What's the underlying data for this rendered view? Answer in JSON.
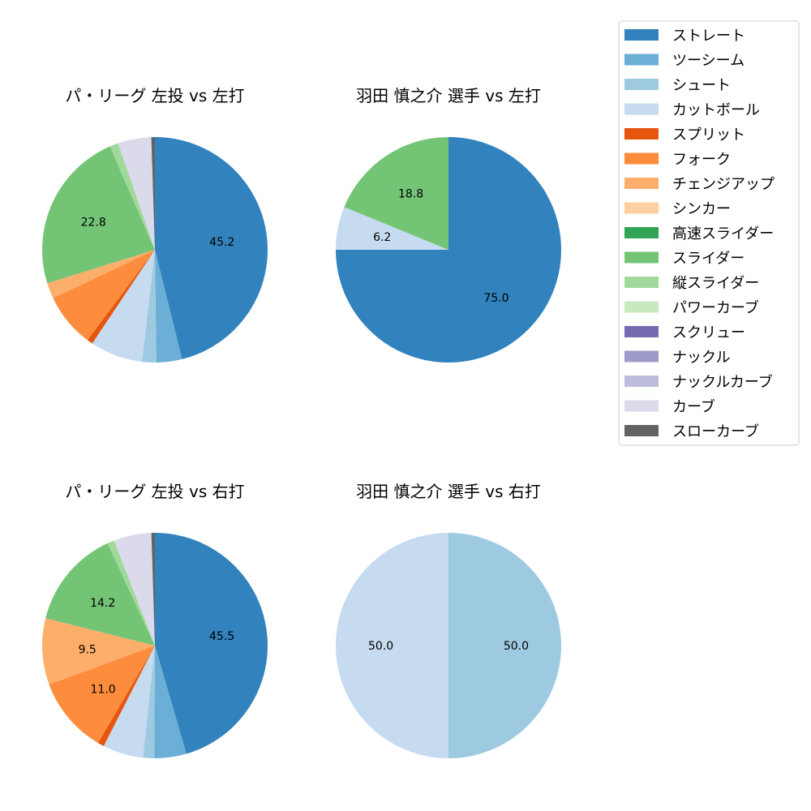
{
  "chart_data": {
    "type": "pie",
    "legend": {
      "placement": "top-right",
      "entries": [
        {
          "label": "ストレート",
          "color": "#3182bd"
        },
        {
          "label": "ツーシーム",
          "color": "#6baed6"
        },
        {
          "label": "シュート",
          "color": "#9ecae1"
        },
        {
          "label": "カットボール",
          "color": "#c6dbef"
        },
        {
          "label": "スプリット",
          "color": "#e6550d"
        },
        {
          "label": "フォーク",
          "color": "#fd8d3c"
        },
        {
          "label": "チェンジアップ",
          "color": "#fdae6b"
        },
        {
          "label": "シンカー",
          "color": "#fdd0a2"
        },
        {
          "label": "高速スライダー",
          "color": "#31a354"
        },
        {
          "label": "スライダー",
          "color": "#74c476"
        },
        {
          "label": "縦スライダー",
          "color": "#a1d99b"
        },
        {
          "label": "パワーカーブ",
          "color": "#c7e9c0"
        },
        {
          "label": "スクリュー",
          "color": "#756bb1"
        },
        {
          "label": "ナックル",
          "color": "#9e9ac8"
        },
        {
          "label": "ナックルカーブ",
          "color": "#bcbddc"
        },
        {
          "label": "カーブ",
          "color": "#dadaeb"
        },
        {
          "label": "スローカーブ",
          "color": "#636363"
        }
      ]
    },
    "charts": [
      {
        "title": "パ・リーグ 左投 vs 左打",
        "slices": [
          {
            "label": "ストレート",
            "value": 45.2,
            "shown": "45.2"
          },
          {
            "label": "ツーシーム",
            "value": 3.6,
            "shown": ""
          },
          {
            "label": "シュート",
            "value": 2.0,
            "shown": ""
          },
          {
            "label": "カットボール",
            "value": 7.4,
            "shown": ""
          },
          {
            "label": "スプリット",
            "value": 0.8,
            "shown": ""
          },
          {
            "label": "フォーク",
            "value": 7.6,
            "shown": ""
          },
          {
            "label": "チェンジアップ",
            "value": 2.2,
            "shown": ""
          },
          {
            "label": "スライダー",
            "value": 22.8,
            "shown": "22.8"
          },
          {
            "label": "縦スライダー",
            "value": 1.2,
            "shown": ""
          },
          {
            "label": "カーブ",
            "value": 4.7,
            "shown": ""
          },
          {
            "label": "スローカーブ",
            "value": 0.5,
            "shown": ""
          }
        ]
      },
      {
        "title": "羽田 慎之介 選手 vs 左打",
        "slices": [
          {
            "label": "ストレート",
            "value": 75.0,
            "shown": "75.0"
          },
          {
            "label": "カットボール",
            "value": 6.2,
            "shown": "6.2"
          },
          {
            "label": "スライダー",
            "value": 18.8,
            "shown": "18.8"
          }
        ]
      },
      {
        "title": "パ・リーグ 左投 vs 右打",
        "slices": [
          {
            "label": "ストレート",
            "value": 45.5,
            "shown": "45.5"
          },
          {
            "label": "ツーシーム",
            "value": 4.6,
            "shown": ""
          },
          {
            "label": "シュート",
            "value": 1.6,
            "shown": ""
          },
          {
            "label": "カットボール",
            "value": 5.8,
            "shown": ""
          },
          {
            "label": "スプリット",
            "value": 0.9,
            "shown": ""
          },
          {
            "label": "フォーク",
            "value": 11.0,
            "shown": "11.0"
          },
          {
            "label": "チェンジアップ",
            "value": 9.5,
            "shown": "9.5"
          },
          {
            "label": "スライダー",
            "value": 14.2,
            "shown": "14.2"
          },
          {
            "label": "縦スライダー",
            "value": 1.0,
            "shown": ""
          },
          {
            "label": "カーブ",
            "value": 5.4,
            "shown": ""
          },
          {
            "label": "スローカーブ",
            "value": 0.5,
            "shown": ""
          }
        ]
      },
      {
        "title": "羽田 慎之介 選手 vs 右打",
        "slices": [
          {
            "label": "シュート",
            "value": 50.0,
            "shown": "50.0"
          },
          {
            "label": "カットボール",
            "value": 50.0,
            "shown": "50.0"
          }
        ]
      }
    ]
  }
}
